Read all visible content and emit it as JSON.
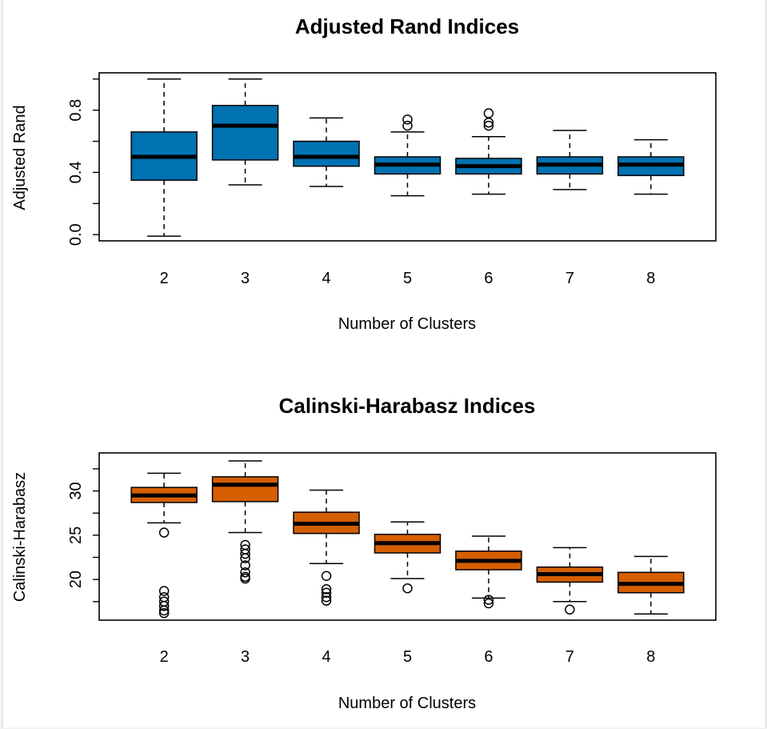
{
  "chart_data": [
    {
      "type": "box",
      "title": "Adjusted Rand Indices",
      "xlabel": "Number of Clusters",
      "ylabel": "Adjusted Rand",
      "categories": [
        "2",
        "3",
        "4",
        "5",
        "6",
        "7",
        "8"
      ],
      "yticks": [
        0.0,
        0.4,
        0.8
      ],
      "ytick_labels": [
        "0.0",
        "0.4",
        "0.8"
      ],
      "ylim": [
        -0.04,
        1.04
      ],
      "fill_color": "#0072b2",
      "boxes": [
        {
          "whisker_low": -0.01,
          "q1": 0.35,
          "median": 0.5,
          "q3": 0.66,
          "whisker_high": 1.0,
          "outliers": []
        },
        {
          "whisker_low": 0.32,
          "q1": 0.48,
          "median": 0.7,
          "q3": 0.83,
          "whisker_high": 1.0,
          "outliers": []
        },
        {
          "whisker_low": 0.31,
          "q1": 0.44,
          "median": 0.5,
          "q3": 0.6,
          "whisker_high": 0.75,
          "outliers": []
        },
        {
          "whisker_low": 0.25,
          "q1": 0.39,
          "median": 0.45,
          "q3": 0.5,
          "whisker_high": 0.66,
          "outliers": [
            0.7,
            0.74
          ]
        },
        {
          "whisker_low": 0.26,
          "q1": 0.39,
          "median": 0.44,
          "q3": 0.49,
          "whisker_high": 0.63,
          "outliers": [
            0.7,
            0.72,
            0.78
          ]
        },
        {
          "whisker_low": 0.29,
          "q1": 0.39,
          "median": 0.45,
          "q3": 0.5,
          "whisker_high": 0.67,
          "outliers": []
        },
        {
          "whisker_low": 0.26,
          "q1": 0.38,
          "median": 0.45,
          "q3": 0.5,
          "whisker_high": 0.61,
          "outliers": []
        }
      ]
    },
    {
      "type": "box",
      "title": "Calinski-Harabasz Indices",
      "xlabel": "Number of Clusters",
      "ylabel": "Calinski-Harabasz",
      "categories": [
        "2",
        "3",
        "4",
        "5",
        "6",
        "7",
        "8"
      ],
      "yticks": [
        20,
        25,
        30
      ],
      "ytick_labels": [
        "20",
        "25",
        "30"
      ],
      "ylim": [
        15.4,
        34.3
      ],
      "fill_color": "#d55e00",
      "boxes": [
        {
          "whisker_low": 26.4,
          "q1": 28.7,
          "median": 29.5,
          "q3": 30.4,
          "whisker_high": 32.0,
          "outliers": [
            25.3,
            18.7,
            18.0,
            17.5,
            17.0,
            16.5,
            16.2
          ]
        },
        {
          "whisker_low": 25.3,
          "q1": 28.8,
          "median": 30.7,
          "q3": 31.6,
          "whisker_high": 33.4,
          "outliers": [
            23.9,
            23.4,
            22.9,
            22.4,
            21.6,
            20.8,
            20.3,
            20.1
          ]
        },
        {
          "whisker_low": 21.8,
          "q1": 25.2,
          "median": 26.3,
          "q3": 27.6,
          "whisker_high": 30.1,
          "outliers": [
            20.4,
            18.9,
            18.5,
            18.0,
            17.6
          ]
        },
        {
          "whisker_low": 20.1,
          "q1": 23.0,
          "median": 24.1,
          "q3": 25.1,
          "whisker_high": 26.5,
          "outliers": [
            19.0
          ]
        },
        {
          "whisker_low": 17.9,
          "q1": 21.1,
          "median": 22.1,
          "q3": 23.2,
          "whisker_high": 24.9,
          "outliers": [
            17.7,
            17.3
          ]
        },
        {
          "whisker_low": 17.5,
          "q1": 19.7,
          "median": 20.6,
          "q3": 21.4,
          "whisker_high": 23.6,
          "outliers": [
            16.6
          ]
        },
        {
          "whisker_low": 16.1,
          "q1": 18.5,
          "median": 19.5,
          "q3": 20.8,
          "whisker_high": 22.6,
          "outliers": []
        }
      ]
    }
  ]
}
